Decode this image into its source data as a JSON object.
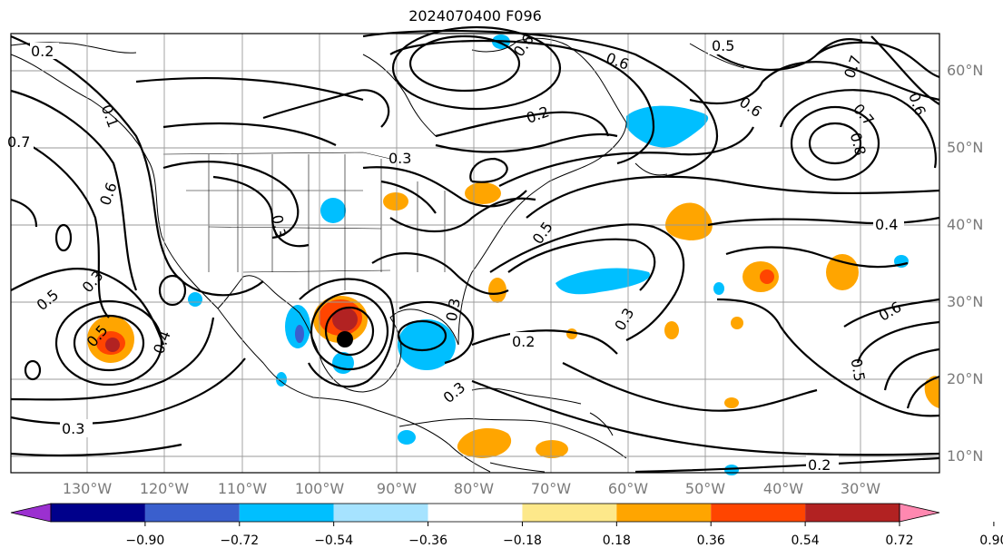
{
  "title": "2024070400 F096",
  "latitude_labels": [
    "60°N",
    "50°N",
    "40°N",
    "30°N",
    "20°N",
    "10°N"
  ],
  "longitude_labels": [
    "130°W",
    "120°W",
    "110°W",
    "100°W",
    "90°W",
    "80°W",
    "70°W",
    "60°W",
    "50°W",
    "40°W",
    "30°W"
  ],
  "colorbar": {
    "colors": [
      "#9b30d0",
      "#00008b",
      "#3a5fcd",
      "#00bfff",
      "#a6e3ff",
      "#ffffff",
      "#fde88a",
      "#ffa500",
      "#ff4500",
      "#b22222",
      "#ff88b0"
    ],
    "tick_labels": [
      "−0.90",
      "−0.72",
      "−0.54",
      "−0.36",
      "−0.18",
      "0.18",
      "0.36",
      "0.54",
      "0.72",
      "0.90"
    ]
  },
  "contour_labels": [
    "0.2",
    "0.7",
    "0.1",
    "0.6",
    "0.3",
    "0.5",
    "0.3",
    "0.3",
    "0.4",
    "0.3",
    "0.3",
    "0.4",
    "0.5",
    "0.6",
    "0.5",
    "0.6",
    "0.2",
    "0.6",
    "0.7",
    "0.8",
    "0.6",
    "0.7",
    "0.8",
    "0.4",
    "0.5",
    "0.3",
    "0.2",
    "0.6",
    "0.5",
    "0.3",
    "0.2"
  ],
  "marker": {
    "name": "storm-center",
    "lat": 24.5,
    "lon": -95.0
  }
}
